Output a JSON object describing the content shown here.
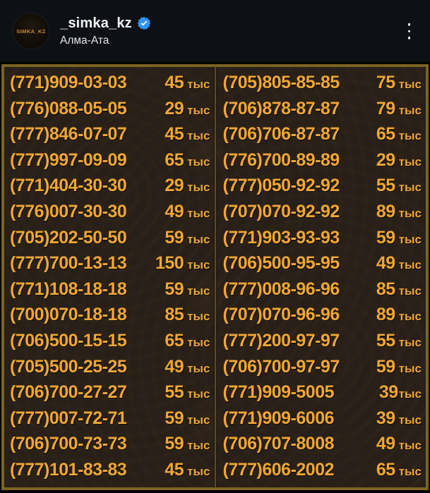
{
  "header": {
    "username": "_simka_kz",
    "location": "Алма-Ата",
    "avatar_label": "SIMKA_KZ",
    "verified": true,
    "menu_icon": "kebab-menu"
  },
  "colors": {
    "header_bg": "#0d1116",
    "board_bg": "#281f18",
    "frame_gold": "#7a6421",
    "text_gold": "#f0a733",
    "verified_blue": "#2e96f0"
  },
  "price_board": {
    "unit_word": "тыс",
    "left_column": [
      {
        "number": "(771)909-03-03",
        "price": "45 тыс"
      },
      {
        "number": "(776)088-05-05",
        "price": "29 тыс"
      },
      {
        "number": "(777)846-07-07",
        "price": "45 тыс"
      },
      {
        "number": "(777)997-09-09",
        "price": "65 тыс"
      },
      {
        "number": "(771)404-30-30",
        "price": "29 тыс"
      },
      {
        "number": "(776)007-30-30",
        "price": "49 тыс"
      },
      {
        "number": "(705)202-50-50",
        "price": "59 тыс"
      },
      {
        "number": "(777)700-13-13",
        "price": "150 тыс"
      },
      {
        "number": "(771)108-18-18",
        "price": "59 тыс"
      },
      {
        "number": "(700)070-18-18",
        "price": "85 тыс"
      },
      {
        "number": "(706)500-15-15",
        "price": "65 тыс"
      },
      {
        "number": "(705)500-25-25",
        "price": "49 тыс"
      },
      {
        "number": "(706)700-27-27",
        "price": "55 тыс"
      },
      {
        "number": "(777)007-72-71",
        "price": "59 тыс"
      },
      {
        "number": "(706)700-73-73",
        "price": "59 тыс"
      },
      {
        "number": "(777)101-83-83",
        "price": "45 тыс"
      }
    ],
    "right_column": [
      {
        "number": "(705)805-85-85",
        "price": "75 тыс"
      },
      {
        "number": "(706)878-87-87",
        "price": "79 тыс"
      },
      {
        "number": "(706)706-87-87",
        "price": "65 тыс"
      },
      {
        "number": "(776)700-89-89",
        "price": "29 тыс"
      },
      {
        "number": "(777)050-92-92",
        "price": "55 тыс"
      },
      {
        "number": "(707)070-92-92",
        "price": "89 тыс"
      },
      {
        "number": "(771)903-93-93",
        "price": "59 тыс"
      },
      {
        "number": "(706)500-95-95",
        "price": "49 тыс"
      },
      {
        "number": "(777)008-96-96",
        "price": "85 тыс"
      },
      {
        "number": "(707)070-96-96",
        "price": "89 тыс"
      },
      {
        "number": "(777)200-97-97",
        "price": "55 тыс"
      },
      {
        "number": "(706)700-97-97",
        "price": "59 тыс"
      },
      {
        "number": "(771)909-5005",
        "price": "39тыс"
      },
      {
        "number": "(771)909-6006",
        "price": "39 тыс"
      },
      {
        "number": "(706)707-8008",
        "price": "49 тыс"
      },
      {
        "number": "(777)606-2002",
        "price": "65 тыс"
      }
    ]
  }
}
